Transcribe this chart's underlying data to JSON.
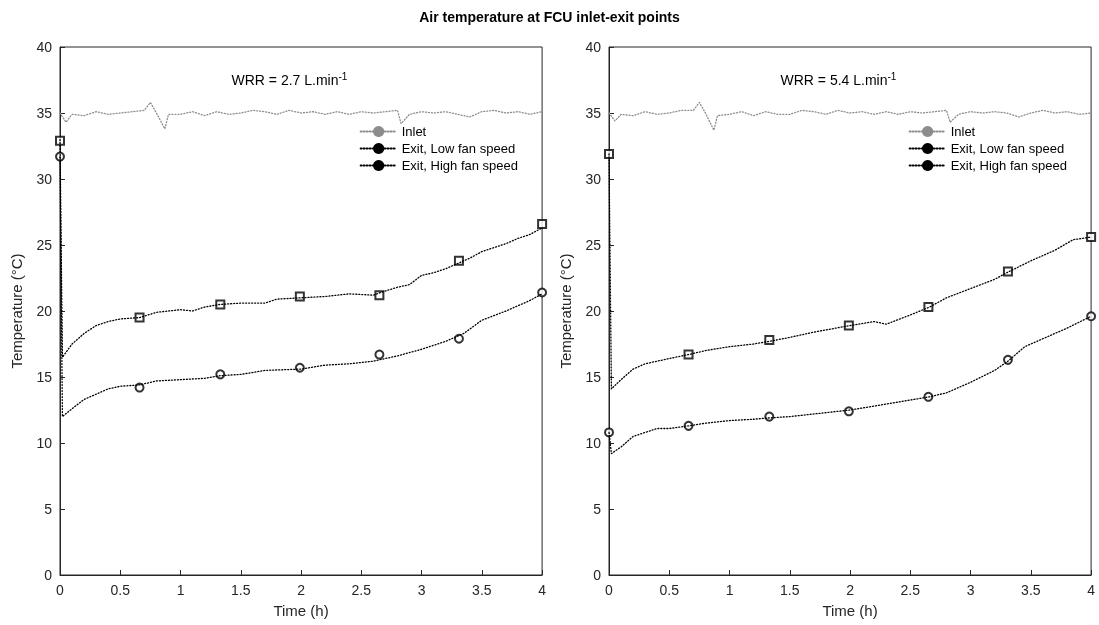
{
  "chart_data": [
    {
      "type": "line",
      "title": "Air temperature at FCU inlet-exit points",
      "xlabel": "Time (h)",
      "ylabel": "Temperature (°C)",
      "annotations": [
        "WRR = 2.7 L.min$^{-1}$"
      ],
      "xlim": [
        0,
        4
      ],
      "xticks": [
        0,
        0.5,
        1,
        1.5,
        2,
        2.5,
        3,
        3.5,
        4
      ],
      "ylim": [
        0,
        40
      ],
      "yticks": [
        0,
        5,
        10,
        15,
        20,
        25,
        30,
        35,
        40
      ],
      "grid": false,
      "legend": "top right",
      "line_style": "dotted",
      "series": [
        {
          "name": "Inlet",
          "color": "#8c8c8c",
          "marker": "none",
          "x": [
            0,
            0.05,
            0.1,
            0.2,
            0.3,
            0.4,
            0.5,
            0.6,
            0.7,
            0.75,
            0.8,
            0.87,
            0.9,
            1,
            1.1,
            1.2,
            1.3,
            1.4,
            1.5,
            1.6,
            1.7,
            1.8,
            1.9,
            2,
            2.1,
            2.2,
            2.3,
            2.4,
            2.5,
            2.6,
            2.7,
            2.8,
            2.83,
            2.9,
            3,
            3.1,
            3.2,
            3.3,
            3.4,
            3.5,
            3.6,
            3.7,
            3.8,
            3.9,
            4
          ],
          "values": [
            35,
            34.3,
            34.9,
            34.8,
            35.1,
            34.9,
            35,
            35.1,
            35.2,
            35.8,
            35,
            33.8,
            34.9,
            34.9,
            35.1,
            34.8,
            35.1,
            34.9,
            35,
            35.2,
            35.1,
            34.9,
            35.2,
            35,
            35.1,
            34.9,
            35.1,
            34.9,
            35.1,
            35,
            35.1,
            35.2,
            34.2,
            34.9,
            35.1,
            35,
            35.1,
            34.9,
            34.7,
            35.1,
            35.2,
            35,
            35.1,
            34.9,
            35.1
          ]
        },
        {
          "name": "Exit, Low fan speed",
          "color": "#000000",
          "marker": "none",
          "x": [
            0,
            0.02,
            0.1,
            0.2,
            0.3,
            0.4,
            0.5,
            0.66,
            0.8,
            1,
            1.2,
            1.33,
            1.5,
            1.7,
            2,
            2.2,
            2.4,
            2.6,
            2.8,
            3,
            3.2,
            3.35,
            3.5,
            3.7,
            3.9,
            4
          ],
          "values": [
            31.7,
            12,
            12.6,
            13.3,
            13.7,
            14.1,
            14.3,
            14.4,
            14.7,
            14.8,
            14.9,
            15.1,
            15.2,
            15.5,
            15.6,
            15.9,
            16,
            16.2,
            16.6,
            17.1,
            17.7,
            18.3,
            19.3,
            20,
            20.8,
            21.3
          ]
        },
        {
          "name": "Exit, High fan speed",
          "color": "#000000",
          "marker": "none",
          "x": [
            0,
            0.02,
            0.1,
            0.2,
            0.3,
            0.4,
            0.5,
            0.66,
            0.8,
            1,
            1.1,
            1.2,
            1.33,
            1.5,
            1.7,
            1.8,
            2,
            2.2,
            2.4,
            2.6,
            2.66,
            2.8,
            2.9,
            3,
            3.1,
            3.2,
            3.3,
            3.4,
            3.5,
            3.6,
            3.7,
            3.8,
            3.9,
            4
          ],
          "values": [
            33,
            16.5,
            17.5,
            18.3,
            18.9,
            19.2,
            19.4,
            19.5,
            19.9,
            20.1,
            20,
            20.3,
            20.5,
            20.6,
            20.6,
            20.9,
            21,
            21.1,
            21.3,
            21.2,
            21.4,
            21.8,
            22,
            22.7,
            22.9,
            23.2,
            23.6,
            24,
            24.5,
            24.8,
            25.1,
            25.5,
            25.8,
            26.3
          ]
        },
        {
          "type": "scatter",
          "color": "#000000",
          "marker": "circle",
          "x": [
            0,
            0.66,
            1.33,
            1.99,
            2.65,
            3.31,
            4
          ],
          "values": [
            31.7,
            14.2,
            15.2,
            15.7,
            16.7,
            17.9,
            21.4
          ]
        },
        {
          "type": "scatter",
          "color": "#000000",
          "marker": "square",
          "x": [
            0,
            0.66,
            1.33,
            1.99,
            2.65,
            3.31,
            4
          ],
          "values": [
            32.9,
            19.5,
            20.5,
            21.1,
            21.2,
            23.8,
            26.6
          ]
        }
      ]
    },
    {
      "type": "line",
      "xlabel": "Time (h)",
      "ylabel": "Temperature (°C)",
      "annotations": [
        "WRR = 5.4 L.min$^{-1}$"
      ],
      "xlim": [
        0,
        4
      ],
      "xticks": [
        0,
        0.5,
        1,
        1.5,
        2,
        2.5,
        3,
        3.5,
        4
      ],
      "ylim": [
        0,
        40
      ],
      "yticks": [
        0,
        5,
        10,
        15,
        20,
        25,
        30,
        35,
        40
      ],
      "grid": false,
      "legend": "top right",
      "line_style": "dotted",
      "series": [
        {
          "name": "Inlet",
          "color": "#8c8c8c",
          "marker": "none",
          "x": [
            0,
            0.05,
            0.1,
            0.2,
            0.3,
            0.4,
            0.5,
            0.6,
            0.7,
            0.75,
            0.8,
            0.87,
            0.9,
            1,
            1.1,
            1.2,
            1.3,
            1.4,
            1.5,
            1.6,
            1.7,
            1.8,
            1.9,
            2,
            2.1,
            2.2,
            2.3,
            2.4,
            2.5,
            2.6,
            2.7,
            2.8,
            2.83,
            2.9,
            3,
            3.1,
            3.2,
            3.3,
            3.4,
            3.5,
            3.6,
            3.7,
            3.8,
            3.9,
            4
          ],
          "values": [
            35,
            34.4,
            34.9,
            34.8,
            35.1,
            34.9,
            35,
            35.2,
            35.2,
            35.8,
            35,
            33.7,
            34.8,
            34.9,
            35.1,
            34.8,
            35.1,
            34.9,
            34.9,
            35.2,
            35.1,
            34.9,
            35.2,
            35,
            35.1,
            34.9,
            35.1,
            34.9,
            35.1,
            35,
            35.1,
            35.2,
            34.3,
            34.9,
            35.1,
            35,
            35.1,
            35,
            34.7,
            35,
            35.2,
            35,
            35.1,
            34.9,
            35
          ]
        },
        {
          "name": "Exit, Low fan speed",
          "color": "#000000",
          "marker": "none",
          "x": [
            0,
            0.02,
            0.1,
            0.2,
            0.3,
            0.4,
            0.5,
            0.66,
            0.8,
            1,
            1.2,
            1.33,
            1.5,
            1.7,
            2,
            2.2,
            2.4,
            2.66,
            2.8,
            3,
            3.2,
            3.31,
            3.45,
            3.6,
            3.8,
            4
          ],
          "values": [
            10.8,
            9.2,
            9.7,
            10.5,
            10.8,
            11.1,
            11.1,
            11.3,
            11.5,
            11.7,
            11.8,
            11.9,
            12,
            12.2,
            12.5,
            12.8,
            13.1,
            13.5,
            13.8,
            14.6,
            15.5,
            16.2,
            17.3,
            17.9,
            18.7,
            19.6
          ]
        },
        {
          "name": "Exit, High fan speed",
          "color": "#000000",
          "marker": "none",
          "x": [
            0,
            0.02,
            0.1,
            0.2,
            0.3,
            0.4,
            0.5,
            0.66,
            0.8,
            1,
            1.2,
            1.33,
            1.5,
            1.7,
            2,
            2.2,
            2.3,
            2.5,
            2.66,
            2.8,
            3,
            3.2,
            3.3,
            3.5,
            3.7,
            3.85,
            4
          ],
          "values": [
            31.9,
            14.1,
            14.8,
            15.6,
            16,
            16.2,
            16.4,
            16.7,
            17,
            17.3,
            17.5,
            17.7,
            18,
            18.4,
            18.9,
            19.2,
            19,
            19.7,
            20.3,
            21,
            21.7,
            22.4,
            22.9,
            23.8,
            24.6,
            25.4,
            25.6
          ]
        },
        {
          "type": "scatter",
          "color": "#000000",
          "marker": "circle",
          "x": [
            0,
            0.66,
            1.33,
            1.99,
            2.65,
            3.31,
            4
          ],
          "values": [
            10.8,
            11.3,
            12,
            12.4,
            13.5,
            16.3,
            19.6
          ]
        },
        {
          "type": "scatter",
          "color": "#000000",
          "marker": "square",
          "x": [
            0,
            0.66,
            1.33,
            1.99,
            2.65,
            3.31,
            4
          ],
          "values": [
            31.9,
            16.7,
            17.8,
            18.9,
            20.3,
            23,
            25.6
          ]
        }
      ]
    }
  ]
}
